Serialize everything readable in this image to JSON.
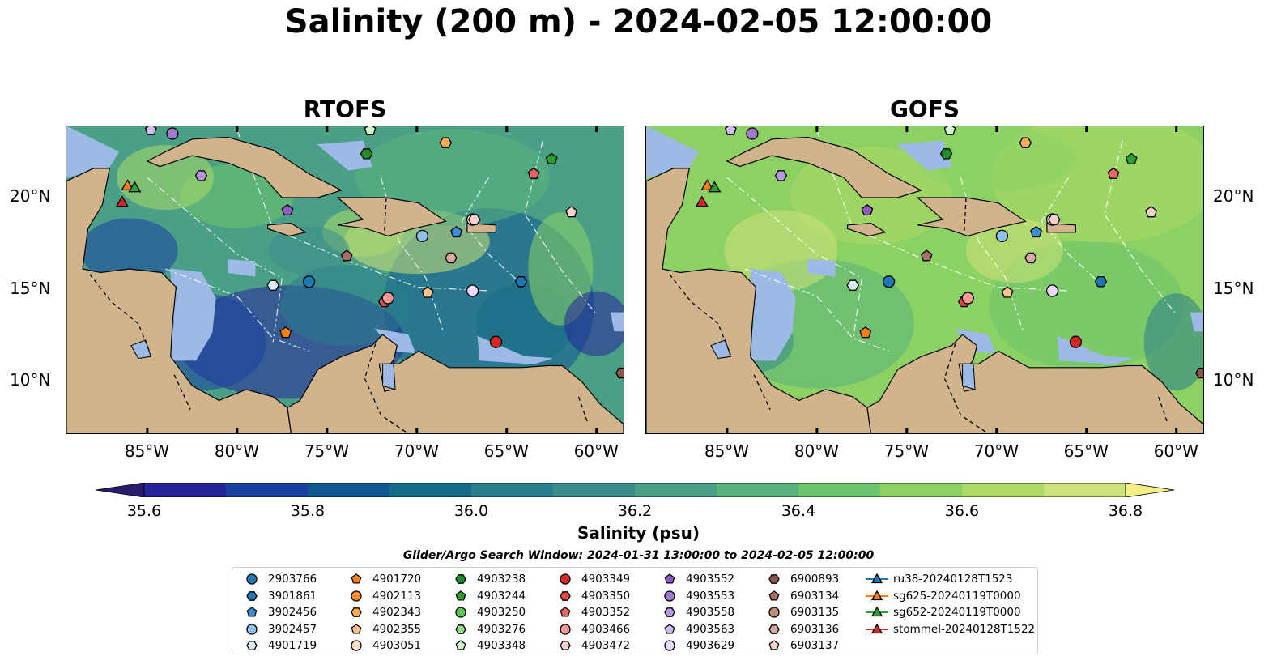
{
  "figure": {
    "title": "Salinity (200 m) - 2024-02-05 12:00:00",
    "panels": [
      {
        "title": "RTOFS",
        "model": "rtofs"
      },
      {
        "title": "GOFS",
        "model": "gofs"
      }
    ],
    "lon_ticks": [
      "85°W",
      "80°W",
      "75°W",
      "70°W",
      "65°W",
      "60°W"
    ],
    "lat_ticks": [
      "20°N",
      "15°N",
      "10°N"
    ],
    "extent": {
      "lon_min": -89.5,
      "lon_max": -58.5,
      "lat_min": 7,
      "lat_max": 23.8
    }
  },
  "colorbar": {
    "label": "Salinity (psu)",
    "vmin": 35.5,
    "vmax": 36.9,
    "step": 0.1,
    "extend": "both",
    "ticks": [
      "35.6",
      "35.8",
      "36.0",
      "36.2",
      "36.4",
      "36.6",
      "36.8"
    ],
    "colors": [
      "#261c6b",
      "#27249a",
      "#1b3fa0",
      "#0f5791",
      "#176b88",
      "#297d8c",
      "#3a8c8a",
      "#4a9f87",
      "#5ab37c",
      "#6cc46d",
      "#8dd165",
      "#addb68",
      "#cde27a",
      "#f4ee86"
    ]
  },
  "colors": {
    "land": "#d2b48c",
    "shallow": "#9db9e6",
    "deep": "#241c6b"
  },
  "legend": {
    "title": "Glider/Argo Search Window: 2024-01-31 13:00:00 to 2024-02-05 12:00:00",
    "items": [
      {
        "label": "2903766",
        "marker": "circle",
        "color": "#1f77b4"
      },
      {
        "label": "3901861",
        "marker": "hexagon",
        "color": "#1f77b4"
      },
      {
        "label": "3902456",
        "marker": "pentagon",
        "color": "#3a8fd4"
      },
      {
        "label": "3902457",
        "marker": "circle",
        "color": "#8ec2ea"
      },
      {
        "label": "4901719",
        "marker": "hexagon",
        "color": "#d8ecf8"
      },
      {
        "label": "4901720",
        "marker": "pentagon",
        "color": "#ff7f0e"
      },
      {
        "label": "4902113",
        "marker": "circle",
        "color": "#ff8c2a"
      },
      {
        "label": "4902343",
        "marker": "hexagon",
        "color": "#ffaa55"
      },
      {
        "label": "4902355",
        "marker": "pentagon",
        "color": "#ffc48c"
      },
      {
        "label": "4903051",
        "marker": "circle",
        "color": "#ffe2c4"
      },
      {
        "label": "4903238",
        "marker": "hexagon",
        "color": "#1f8f2a"
      },
      {
        "label": "4903244",
        "marker": "pentagon",
        "color": "#2ca02c"
      },
      {
        "label": "4903250",
        "marker": "circle",
        "color": "#5cc85c"
      },
      {
        "label": "4903276",
        "marker": "hexagon",
        "color": "#98df8a"
      },
      {
        "label": "4903348",
        "marker": "pentagon",
        "color": "#d4f7cc"
      },
      {
        "label": "4903349",
        "marker": "circle",
        "color": "#d62728"
      },
      {
        "label": "4903350",
        "marker": "hexagon",
        "color": "#e04848"
      },
      {
        "label": "4903352",
        "marker": "pentagon",
        "color": "#ea6464"
      },
      {
        "label": "4903466",
        "marker": "circle",
        "color": "#f49a98"
      },
      {
        "label": "4903472",
        "marker": "hexagon",
        "color": "#fdd0d0"
      },
      {
        "label": "4903552",
        "marker": "pentagon",
        "color": "#8c5cc0"
      },
      {
        "label": "4903553",
        "marker": "circle",
        "color": "#a07ad0"
      },
      {
        "label": "4903558",
        "marker": "hexagon",
        "color": "#b596e0"
      },
      {
        "label": "4903563",
        "marker": "pentagon",
        "color": "#d0bdf0"
      },
      {
        "label": "4903629",
        "marker": "circle",
        "color": "#e8d8fb"
      },
      {
        "label": "6900893",
        "marker": "hexagon",
        "color": "#8c564b"
      },
      {
        "label": "6903134",
        "marker": "pentagon",
        "color": "#a87062"
      },
      {
        "label": "6903135",
        "marker": "circle",
        "color": "#c08a7c"
      },
      {
        "label": "6903136",
        "marker": "hexagon",
        "color": "#d8aaa0"
      },
      {
        "label": "6903137",
        "marker": "pentagon",
        "color": "#f5d2c8"
      },
      {
        "label": "ru38-20240128T1523",
        "marker": "triangle-line",
        "color": "#1f77b4"
      },
      {
        "label": "sg625-20240119T0000",
        "marker": "triangle-line",
        "color": "#ff7f0e"
      },
      {
        "label": "sg652-20240119T0000",
        "marker": "triangle-line",
        "color": "#2ca02c"
      },
      {
        "label": "stommel-20240128T1522",
        "marker": "triangle-line",
        "color": "#d62728"
      }
    ]
  },
  "floats": [
    {
      "id": "2903766",
      "lon": -76.0,
      "lat": 15.3
    },
    {
      "id": "3901861",
      "lon": -64.2,
      "lat": 15.3
    },
    {
      "id": "3902456",
      "lon": -67.8,
      "lat": 18.0
    },
    {
      "id": "3902457",
      "lon": -69.7,
      "lat": 17.8
    },
    {
      "id": "4901719",
      "lon": -78.0,
      "lat": 15.1
    },
    {
      "id": "4901720",
      "lon": -77.3,
      "lat": 12.5
    },
    {
      "id": "4902343",
      "lon": -68.4,
      "lat": 22.9
    },
    {
      "id": "4902355",
      "lon": -69.4,
      "lat": 14.7
    },
    {
      "id": "4903051",
      "lon": -66.9,
      "lat": 18.7
    },
    {
      "id": "4903238",
      "lon": -72.8,
      "lat": 22.3
    },
    {
      "id": "4903244",
      "lon": -62.5,
      "lat": 22.0
    },
    {
      "id": "4903349",
      "lon": -65.6,
      "lat": 12.0
    },
    {
      "id": "4903350",
      "lon": -71.8,
      "lat": 14.2
    },
    {
      "id": "4903352",
      "lon": -63.5,
      "lat": 21.2
    },
    {
      "id": "4903466",
      "lon": -71.6,
      "lat": 14.4
    },
    {
      "id": "4903472",
      "lon": -66.8,
      "lat": 18.7
    },
    {
      "id": "4903552",
      "lon": -77.2,
      "lat": 19.2
    },
    {
      "id": "4903553",
      "lon": -83.6,
      "lat": 23.4
    },
    {
      "id": "4903558",
      "lon": -82.0,
      "lat": 21.1
    },
    {
      "id": "4903563",
      "lon": -84.8,
      "lat": 23.6
    },
    {
      "id": "4903629",
      "lon": -66.9,
      "lat": 14.8
    },
    {
      "id": "6900893",
      "lon": -58.6,
      "lat": 10.3
    },
    {
      "id": "6903134",
      "lon": -73.9,
      "lat": 16.7
    },
    {
      "id": "6903136",
      "lon": -68.1,
      "lat": 16.6
    },
    {
      "id": "6903137",
      "lon": -61.4,
      "lat": 19.1
    },
    {
      "id": "4903348",
      "lon": -72.6,
      "lat": 23.6
    }
  ],
  "gliders": [
    {
      "id": "sg625-20240119T0000",
      "lon": -86.1,
      "lat": 20.5
    },
    {
      "id": "sg652-20240119T0000",
      "lon": -85.7,
      "lat": 20.4
    },
    {
      "id": "stommel-20240128T1522",
      "lon": -86.4,
      "lat": 19.6
    }
  ]
}
